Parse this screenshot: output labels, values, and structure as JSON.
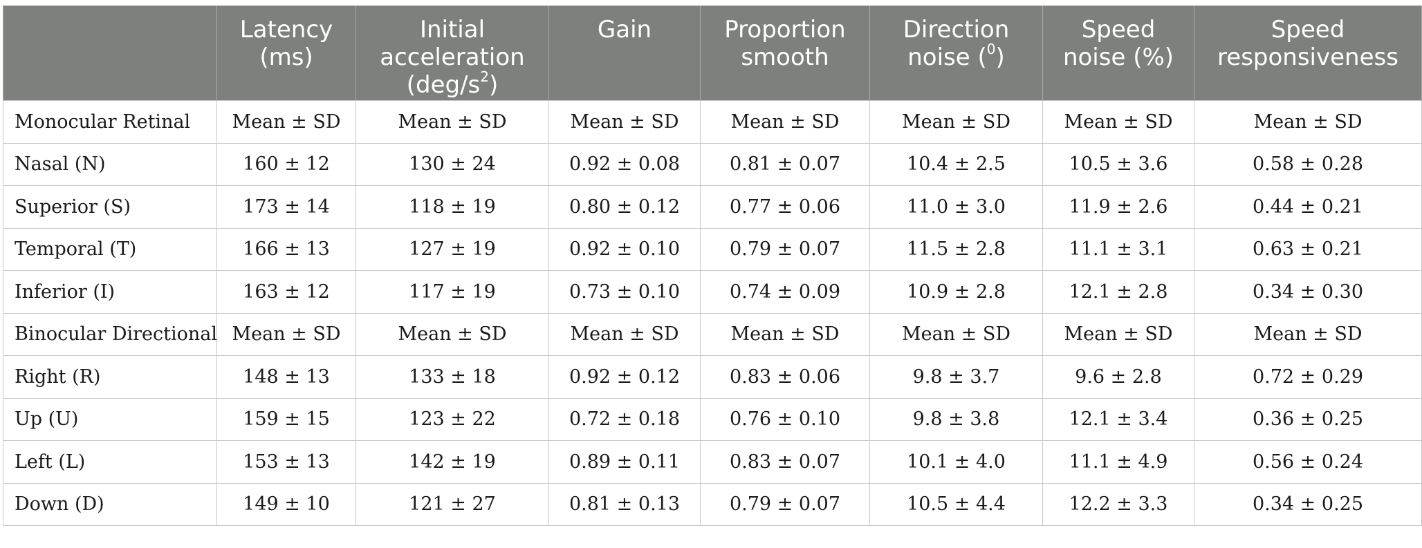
{
  "table": {
    "headers": [
      {
        "lines": [
          ""
        ]
      },
      {
        "lines": [
          "Latency",
          "(ms)"
        ]
      },
      {
        "lines": [
          "Initial",
          "acceleration",
          "(deg/s",
          "2",
          ")"
        ]
      },
      {
        "lines": [
          "Gain"
        ]
      },
      {
        "lines": [
          "Proportion",
          "smooth"
        ]
      },
      {
        "lines": [
          "Direction",
          "noise (",
          "0",
          ")"
        ]
      },
      {
        "lines": [
          "Speed",
          "noise (%)"
        ]
      },
      {
        "lines": [
          "Speed",
          "responsiveness"
        ]
      }
    ],
    "rows": [
      {
        "label": "Monocular Retinal",
        "cells": [
          "Mean ± SD",
          "Mean ± SD",
          "Mean ± SD",
          "Mean ± SD",
          "Mean ± SD",
          "Mean ± SD",
          "Mean ± SD"
        ]
      },
      {
        "label": "Nasal (N)",
        "cells": [
          "160 ± 12",
          "130 ± 24",
          "0.92 ± 0.08",
          "0.81 ± 0.07",
          "10.4 ± 2.5",
          "10.5 ± 3.6",
          "0.58 ± 0.28"
        ]
      },
      {
        "label": "Superior (S)",
        "cells": [
          "173 ± 14",
          "118 ± 19",
          "0.80 ± 0.12",
          "0.77 ± 0.06",
          "11.0 ± 3.0",
          "11.9 ± 2.6",
          "0.44 ± 0.21"
        ]
      },
      {
        "label": "Temporal (T)",
        "cells": [
          "166 ± 13",
          "127 ± 19",
          "0.92 ± 0.10",
          "0.79 ± 0.07",
          "11.5 ± 2.8",
          "11.1 ± 3.1",
          "0.63 ± 0.21"
        ]
      },
      {
        "label": "Inferior (I)",
        "cells": [
          "163 ± 12",
          "117 ± 19",
          "0.73 ± 0.10",
          "0.74 ± 0.09",
          "10.9 ± 2.8",
          "12.1 ± 2.8",
          "0.34 ± 0.30"
        ]
      },
      {
        "label": "Binocular Directional",
        "cells": [
          "Mean ± SD",
          "Mean ± SD",
          "Mean ± SD",
          "Mean ± SD",
          "Mean ± SD",
          "Mean ± SD",
          "Mean ± SD"
        ]
      },
      {
        "label": "Right (R)",
        "cells": [
          "148 ± 13",
          "133 ± 18",
          "0.92 ± 0.12",
          "0.83 ± 0.06",
          "9.8 ± 3.7",
          "9.6 ± 2.8",
          "0.72 ± 0.29"
        ]
      },
      {
        "label": "Up (U)",
        "cells": [
          "159 ± 15",
          "123 ± 22",
          "0.72 ± 0.18",
          "0.76 ± 0.10",
          "9.8 ± 3.8",
          "12.1 ± 3.4",
          "0.36 ± 0.25"
        ]
      },
      {
        "label": "Left (L)",
        "cells": [
          "153 ± 13",
          "142 ± 19",
          "0.89 ± 0.11",
          "0.83 ± 0.07",
          "10.1 ± 4.0",
          "11.1 ± 4.9",
          "0.56 ± 0.24"
        ]
      },
      {
        "label": "Down (D)",
        "cells": [
          "149 ± 10",
          "121 ± 27",
          "0.81 ± 0.13",
          "0.79 ± 0.07",
          "10.5 ± 4.4",
          "12.2 ± 3.3",
          "0.34 ± 0.25"
        ]
      }
    ]
  },
  "colors": {
    "header_background": "#7e807e",
    "header_text": "#ffffff",
    "grid_line": "#c8c8c8"
  }
}
